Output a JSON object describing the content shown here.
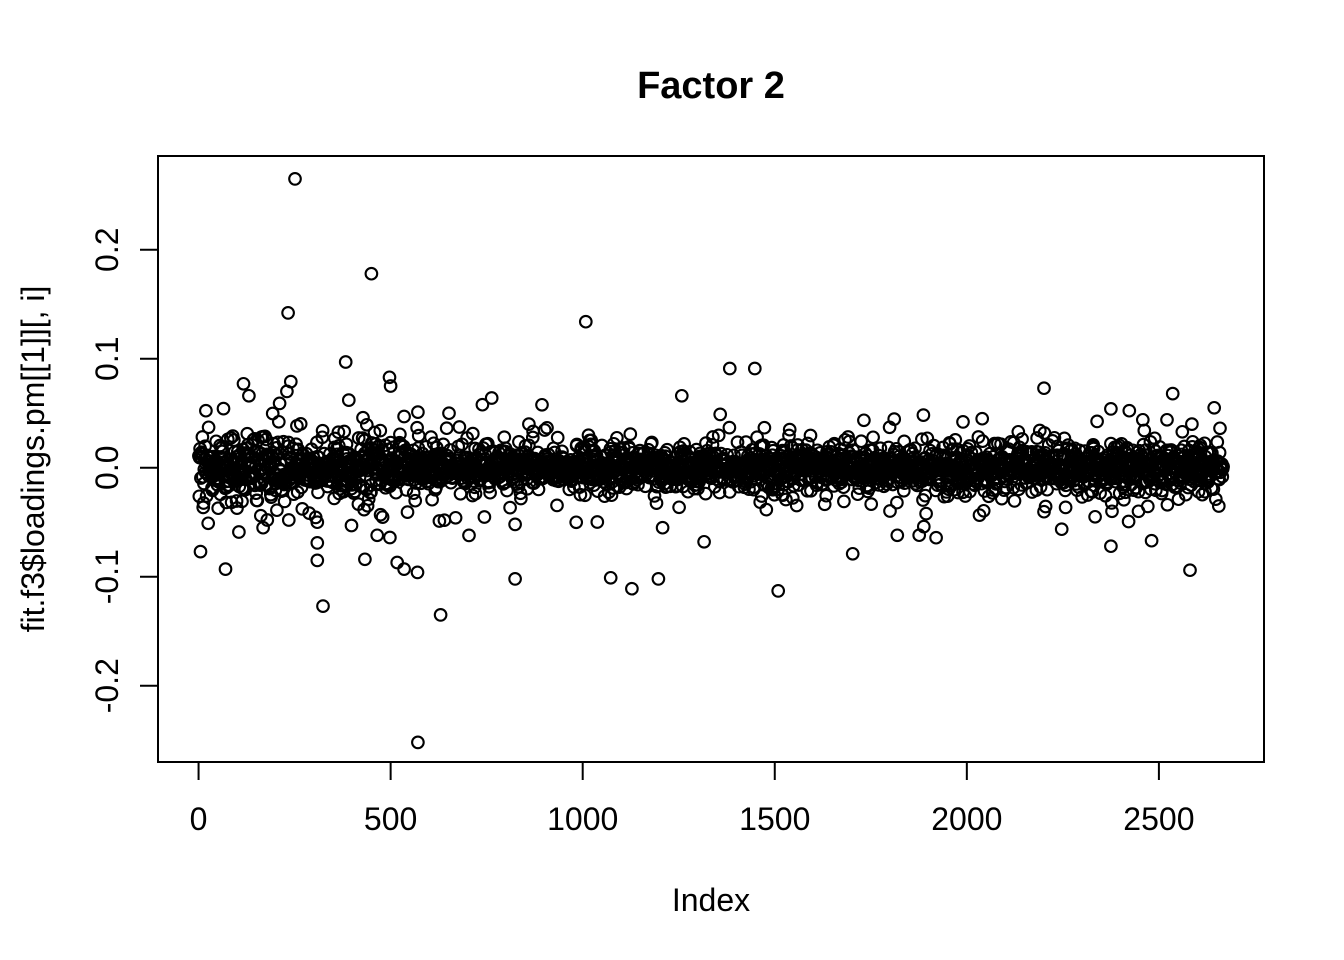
{
  "figure": {
    "title": "Factor 2",
    "xlabel": "Index",
    "ylabel": "fit.f3$loadings.pm[[1]][, i]"
  },
  "chart_data": {
    "type": "scatter",
    "title": "Factor 2",
    "xlabel": "Index",
    "ylabel": "fit.f3$loadings.pm[[1]][, i]",
    "x_ticks": [
      {
        "v": 0,
        "label": "0"
      },
      {
        "v": 500,
        "label": "500"
      },
      {
        "v": 1000,
        "label": "1000"
      },
      {
        "v": 1500,
        "label": "1500"
      },
      {
        "v": 2000,
        "label": "2000"
      },
      {
        "v": 2500,
        "label": "2500"
      }
    ],
    "y_ticks": [
      {
        "v": -0.2,
        "label": "-0.2"
      },
      {
        "v": -0.1,
        "label": "-0.1"
      },
      {
        "v": 0.0,
        "label": "0.0"
      },
      {
        "v": 0.1,
        "label": "0.1"
      },
      {
        "v": 0.2,
        "label": "0.2"
      }
    ],
    "xlim": [
      -105.6,
      2773.6
    ],
    "ylim": [
      -0.27,
      0.286
    ],
    "n_points": 2667,
    "x_is_index": true,
    "grid": false,
    "legend": null,
    "background": "#ffffff",
    "marker": {
      "shape": "open-circle",
      "radius_px": 5.8,
      "stroke_px": 2.1,
      "color": "#000000"
    },
    "band_summary": {
      "description": "dense horizontal band of overplotted open circles centered on y=0",
      "center": 0,
      "core_sd": 0.0095,
      "mid_sd": 0.017,
      "tail_sd": 0.027,
      "mixture": [
        0.74,
        0.19,
        0.07
      ],
      "left_extra_spread": {
        "until_x": 700,
        "max_factor": 1.5
      },
      "clamp_abs": 0.08
    },
    "seed": 42,
    "outliers": [
      [
        251,
        0.265
      ],
      [
        450,
        0.178
      ],
      [
        233,
        0.142
      ],
      [
        1008,
        0.134
      ],
      [
        383,
        0.097
      ],
      [
        1383,
        0.091
      ],
      [
        1448,
        0.091
      ],
      [
        497,
        0.083
      ],
      [
        240,
        0.079
      ],
      [
        117,
        0.077
      ],
      [
        500,
        0.075
      ],
      [
        2201,
        0.073
      ],
      [
        230,
        0.07
      ],
      [
        2536,
        0.068
      ],
      [
        1258,
        0.066
      ],
      [
        131,
        0.066
      ],
      [
        763,
        0.064
      ],
      [
        391,
        0.062
      ],
      [
        2644,
        0.055
      ],
      [
        2375,
        0.054
      ],
      [
        652,
        0.05
      ],
      [
        535,
        0.047
      ],
      [
        2040,
        0.045
      ],
      [
        2458,
        0.044
      ],
      [
        2521,
        0.044
      ],
      [
        1990,
        0.042
      ],
      [
        860,
        0.04
      ],
      [
        2586,
        0.04
      ],
      [
        2134,
        0.033
      ],
      [
        571,
        -0.252
      ],
      [
        630,
        -0.135
      ],
      [
        324,
        -0.127
      ],
      [
        1509,
        -0.113
      ],
      [
        1128,
        -0.111
      ],
      [
        1197,
        -0.102
      ],
      [
        824,
        -0.102
      ],
      [
        1073,
        -0.101
      ],
      [
        570,
        -0.096
      ],
      [
        2581,
        -0.094
      ],
      [
        70,
        -0.093
      ],
      [
        535,
        -0.093
      ],
      [
        517,
        -0.087
      ],
      [
        309,
        -0.085
      ],
      [
        433,
        -0.084
      ],
      [
        1703,
        -0.079
      ],
      [
        5,
        -0.077
      ],
      [
        2375,
        -0.072
      ],
      [
        309,
        -0.069
      ],
      [
        1316,
        -0.068
      ],
      [
        2481,
        -0.067
      ],
      [
        498,
        -0.064
      ],
      [
        1819,
        -0.062
      ],
      [
        105,
        -0.059
      ],
      [
        1208,
        -0.055
      ],
      [
        1888,
        -0.054
      ],
      [
        398,
        -0.053
      ],
      [
        824,
        -0.052
      ],
      [
        25,
        -0.051
      ],
      [
        309,
        -0.05
      ],
      [
        179,
        -0.048
      ],
      [
        2334,
        -0.045
      ],
      [
        2447,
        -0.04
      ],
      [
        2378,
        -0.04
      ]
    ]
  }
}
